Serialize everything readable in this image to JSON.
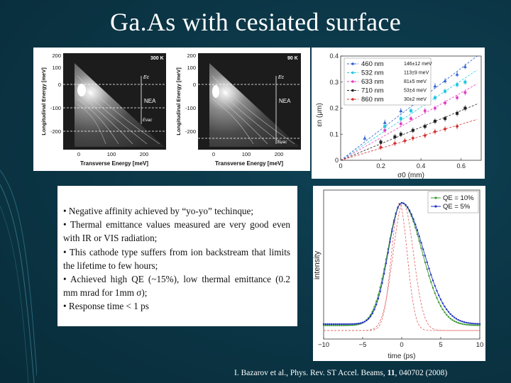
{
  "slide": {
    "title": "Ga.As with cesiated surface",
    "bullets": [
      "• Negative affinity achieved by “yo-yo” techinque;",
      "• Thermal emittance values measured are very good even with IR or VIS radiation;",
      "• This cathode type suffers from ion backstream that limits the lifetime to few hours;",
      "• Achieved high QE (~15%), low thermal emittance (0.2 mm mrad for 1mm σ);",
      "• Response time < 1 ps"
    ],
    "citation": {
      "prefix": "I. Bazarov et al., Phys. Rev. ST Accel. Beams, ",
      "volume": "11",
      "suffix": ", 040702 (2008)"
    }
  },
  "contour_plots": {
    "ylabel": "Longitudinal Energy [meV]",
    "xlabel": "Transverse Energy [meV]",
    "yticks": [
      "200",
      "100",
      "0",
      "-100",
      "-200"
    ],
    "xticks": [
      "0",
      "100",
      "200"
    ],
    "panels": [
      {
        "temperature": "300 K",
        "ec_label": "Ec",
        "nea_label": "NEA",
        "evac_label": "Evac"
      },
      {
        "temperature": "90 K",
        "ec_label": "Ec",
        "nea_label": "NEA",
        "evac_label": "Evac"
      }
    ]
  },
  "chart_data": [
    {
      "type": "scatter",
      "xlabel": "σ0 (mm)",
      "ylabel": "εn (μm)",
      "xlim": [
        0,
        0.7
      ],
      "ylim": [
        0,
        0.4
      ],
      "xticks": [
        "0",
        "0.2",
        "0.4",
        "0.6"
      ],
      "yticks": [
        "0",
        "0.1",
        "0.2",
        "0.3",
        "0.4"
      ],
      "legend": "top-left",
      "series": [
        {
          "name": "460 nm",
          "thermal_energy": "146±12 meV",
          "color": "#3060d0",
          "marker": "triangle",
          "x": [
            0.12,
            0.22,
            0.3,
            0.36,
            0.42,
            0.47,
            0.52,
            0.58,
            0.62
          ],
          "y": [
            0.085,
            0.145,
            0.19,
            0.22,
            0.25,
            0.285,
            0.305,
            0.33,
            0.36
          ]
        },
        {
          "name": "532 nm",
          "thermal_energy": "113±9 meV",
          "color": "#20c8e0",
          "marker": "square",
          "x": [
            0.22,
            0.3,
            0.35,
            0.42,
            0.47,
            0.52,
            0.58,
            0.62
          ],
          "y": [
            0.13,
            0.16,
            0.19,
            0.22,
            0.24,
            0.265,
            0.29,
            0.3
          ]
        },
        {
          "name": "633 nm",
          "thermal_energy": "81±5 meV",
          "color": "#e040c0",
          "marker": "circle",
          "x": [
            0.22,
            0.3,
            0.35,
            0.42,
            0.47,
            0.52,
            0.58,
            0.62
          ],
          "y": [
            0.115,
            0.14,
            0.16,
            0.19,
            0.2,
            0.22,
            0.24,
            0.26
          ]
        },
        {
          "name": "710 nm",
          "thermal_energy": "53±4 meV",
          "color": "#222222",
          "marker": "square",
          "x": [
            0.2,
            0.27,
            0.3,
            0.36,
            0.42,
            0.47,
            0.52,
            0.58,
            0.62
          ],
          "y": [
            0.07,
            0.09,
            0.1,
            0.115,
            0.13,
            0.15,
            0.16,
            0.18,
            0.2
          ]
        },
        {
          "name": "860 nm",
          "thermal_energy": "30±2 meV",
          "color": "#d03030",
          "marker": "diamond",
          "x": [
            0.2,
            0.27,
            0.32,
            0.36,
            0.42,
            0.47,
            0.52,
            0.58
          ],
          "y": [
            0.05,
            0.065,
            0.075,
            0.085,
            0.095,
            0.11,
            0.12,
            0.13
          ]
        }
      ]
    },
    {
      "type": "line",
      "xlabel": "time (ps)",
      "ylabel": "intensity",
      "xlim": [
        -10,
        10
      ],
      "xticks": [
        "−10",
        "−5",
        "0",
        "5",
        "10"
      ],
      "legend": "top-right",
      "series": [
        {
          "name": "QE = 10%",
          "color": "#3a9a30",
          "peak_time": 0,
          "rise_width": 1.8,
          "fall_width": 2.6,
          "baseline": 0.04
        },
        {
          "name": "QE = 5%",
          "color": "#2030c0",
          "peak_time": 0,
          "rise_width": 1.7,
          "fall_width": 2.8,
          "baseline": 0.05
        }
      ],
      "reference_curves": [
        {
          "color": "#e06060",
          "peak_time": -0.3,
          "width": 1.0
        },
        {
          "color": "#e06060",
          "peak_time": 0.2,
          "width": 1.3
        }
      ]
    }
  ]
}
